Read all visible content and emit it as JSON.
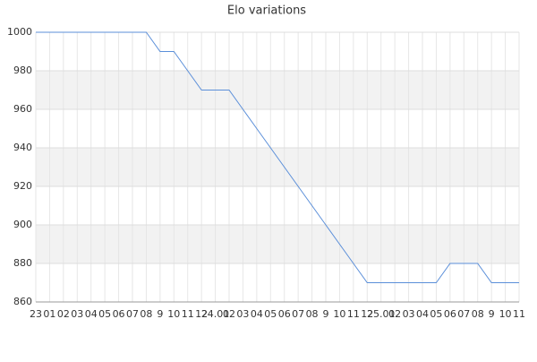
{
  "chart_data": {
    "type": "line",
    "title": "Elo variations",
    "categories": [
      "23",
      "01",
      "02",
      "03",
      "04",
      "05",
      "06",
      "07",
      "08",
      "9",
      "10",
      "11",
      "12",
      "24.01",
      "02",
      "03",
      "04",
      "05",
      "06",
      "07",
      "08",
      "9",
      "10",
      "11",
      "12",
      "25.01",
      "02",
      "03",
      "04",
      "05",
      "06",
      "07",
      "08",
      "9",
      "10",
      "11"
    ],
    "series": [
      {
        "color": "#5b8fd9",
        "values": [
          1000,
          1000,
          1000,
          1000,
          1000,
          1000,
          1000,
          1000,
          1000,
          990,
          990,
          980,
          970,
          970,
          970,
          960,
          950,
          940,
          930,
          920,
          910,
          900,
          890,
          880,
          870,
          870,
          870,
          870,
          870,
          870,
          880,
          880,
          880,
          870,
          870,
          870
        ]
      }
    ],
    "ylim": [
      860,
      1000
    ],
    "yticks": [
      860,
      880,
      900,
      920,
      940,
      960,
      980,
      1000
    ],
    "grid": true,
    "bands": true
  }
}
